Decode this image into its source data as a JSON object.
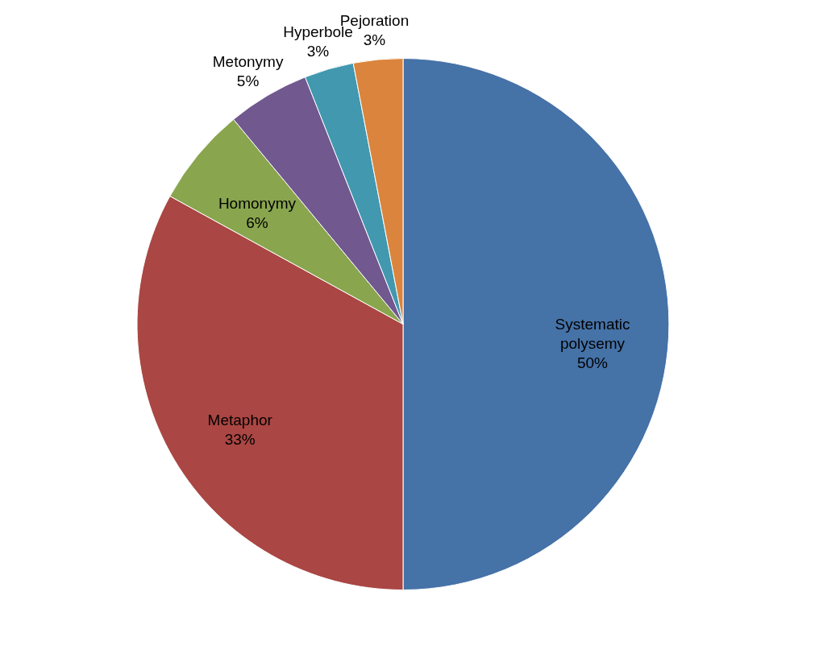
{
  "chart_data": {
    "type": "pie",
    "categories": [
      "Systematic polysemy",
      "Metaphor",
      "Homonymy",
      "Metonymy",
      "Hyperbole",
      "Pejoration"
    ],
    "values": [
      50,
      33,
      6,
      5,
      3,
      3
    ],
    "value_labels": [
      "50%",
      "33%",
      "6%",
      "5%",
      "3%",
      "3%"
    ],
    "colors": [
      "#4572a7",
      "#aa4643",
      "#89a54e",
      "#71588f",
      "#4198af",
      "#db843d"
    ],
    "legend": false
  }
}
